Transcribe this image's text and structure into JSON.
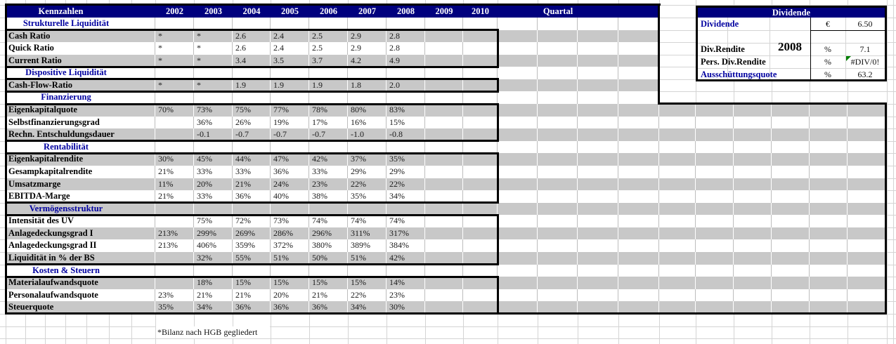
{
  "header": {
    "kennzahlen": "Kennzahlen",
    "years": [
      "2002",
      "2003",
      "2004",
      "2005",
      "2006",
      "2007",
      "2008",
      "2009",
      "2010"
    ],
    "quartal": "Quartal"
  },
  "rows": [
    {
      "type": "section",
      "label": "Strukturelle Liquidität"
    },
    {
      "type": "data",
      "label": "Cash Ratio",
      "values": [
        "*",
        "*",
        "2.6",
        "2.4",
        "2.5",
        "2.9",
        "2.8",
        "",
        ""
      ]
    },
    {
      "type": "data",
      "label": "Quick Ratio",
      "values": [
        "*",
        "*",
        "2.6",
        "2.4",
        "2.5",
        "2.9",
        "2.8",
        "",
        ""
      ]
    },
    {
      "type": "data",
      "label": "Current Ratio",
      "values": [
        "*",
        "*",
        "3.4",
        "3.5",
        "3.7",
        "4.2",
        "4.9",
        "",
        ""
      ]
    },
    {
      "type": "section",
      "label": "Dispositive Liquidität"
    },
    {
      "type": "data",
      "label": "Cash-Flow-Ratio",
      "values": [
        "*",
        "*",
        "1.9",
        "1.9",
        "1.9",
        "1.8",
        "2.0",
        "",
        ""
      ]
    },
    {
      "type": "section",
      "label": "Finanzierung"
    },
    {
      "type": "data",
      "label": "Eigenkapitalquote",
      "values": [
        "70%",
        "73%",
        "75%",
        "77%",
        "78%",
        "80%",
        "83%",
        "",
        ""
      ]
    },
    {
      "type": "data",
      "label": "Selbstfinanzierungsgrad",
      "values": [
        "",
        "36%",
        "26%",
        "19%",
        "17%",
        "16%",
        "15%",
        "",
        ""
      ]
    },
    {
      "type": "data",
      "label": "Rechn. Entschuldungsdauer",
      "values": [
        "",
        "-0.1",
        "-0.7",
        "-0.7",
        "-0.7",
        "-1.0",
        "-0.8",
        "",
        ""
      ]
    },
    {
      "type": "section",
      "label": "Rentabilität"
    },
    {
      "type": "data",
      "label": "Eigenkapitalrendite",
      "values": [
        "30%",
        "45%",
        "44%",
        "47%",
        "42%",
        "37%",
        "35%",
        "",
        ""
      ]
    },
    {
      "type": "data",
      "label": "Gesampkapitalrendite",
      "values": [
        "21%",
        "33%",
        "33%",
        "36%",
        "33%",
        "29%",
        "29%",
        "",
        ""
      ]
    },
    {
      "type": "data",
      "label": "Umsatzmarge",
      "values": [
        "11%",
        "20%",
        "21%",
        "24%",
        "23%",
        "22%",
        "22%",
        "",
        ""
      ]
    },
    {
      "type": "data",
      "label": "EBITDA-Marge",
      "values": [
        "21%",
        "33%",
        "36%",
        "40%",
        "38%",
        "35%",
        "34%",
        "",
        ""
      ]
    },
    {
      "type": "section",
      "label": "Vermögensstruktur"
    },
    {
      "type": "data",
      "label": "Intensität des UV",
      "values": [
        "",
        "75%",
        "72%",
        "73%",
        "74%",
        "74%",
        "74%",
        "",
        ""
      ]
    },
    {
      "type": "data",
      "label": "Anlagedeckungsgrad I",
      "values": [
        "213%",
        "299%",
        "269%",
        "286%",
        "296%",
        "311%",
        "317%",
        "",
        ""
      ]
    },
    {
      "type": "data",
      "label": "Anlagedeckungsgrad II",
      "values": [
        "213%",
        "406%",
        "359%",
        "372%",
        "380%",
        "389%",
        "384%",
        "",
        ""
      ]
    },
    {
      "type": "data",
      "label": "Liquidität in % der BS",
      "values": [
        "",
        "32%",
        "55%",
        "51%",
        "50%",
        "51%",
        "42%",
        "",
        ""
      ]
    },
    {
      "type": "section",
      "label": "Kosten & Steuern"
    },
    {
      "type": "data",
      "label": "Materialaufwandsquote",
      "values": [
        "",
        "18%",
        "15%",
        "15%",
        "15%",
        "15%",
        "14%",
        "",
        ""
      ]
    },
    {
      "type": "data",
      "label": "Personalaufwandsquote",
      "values": [
        "23%",
        "21%",
        "21%",
        "20%",
        "21%",
        "22%",
        "23%",
        "",
        ""
      ]
    },
    {
      "type": "data",
      "label": "Steuerquote",
      "values": [
        "35%",
        "34%",
        "36%",
        "36%",
        "36%",
        "34%",
        "30%",
        "",
        ""
      ]
    }
  ],
  "dividende": {
    "title": "Dividende",
    "year": "2008",
    "rows": [
      {
        "label": "Dividende",
        "label_color": "blue",
        "unit": "€",
        "value": "6.50"
      },
      {
        "label": "",
        "label_color": "black",
        "unit": "",
        "value": ""
      },
      {
        "label": "Div.Rendite",
        "label_color": "black",
        "unit": "%",
        "value": "7.1"
      },
      {
        "label": "Pers. Div.Rendite",
        "label_color": "black",
        "unit": "%",
        "value": "#DIV/0!",
        "error": true
      },
      {
        "label": "Ausschüttungsquote",
        "label_color": "blue",
        "unit": "%",
        "value": "63.2"
      }
    ]
  },
  "footnote": "*Bilanz nach HGB gegliedert",
  "icons": {
    "error_indicator": "error-indicator-icon"
  },
  "colors": {
    "header_bg": "#00007e",
    "stripe_gray": "#c8c8c8",
    "section_blue": "#0000a0",
    "error_green": "#008000",
    "grid_line": "#d4d4d4",
    "cell_line": "#bdbdbd",
    "border_black": "#000000"
  }
}
